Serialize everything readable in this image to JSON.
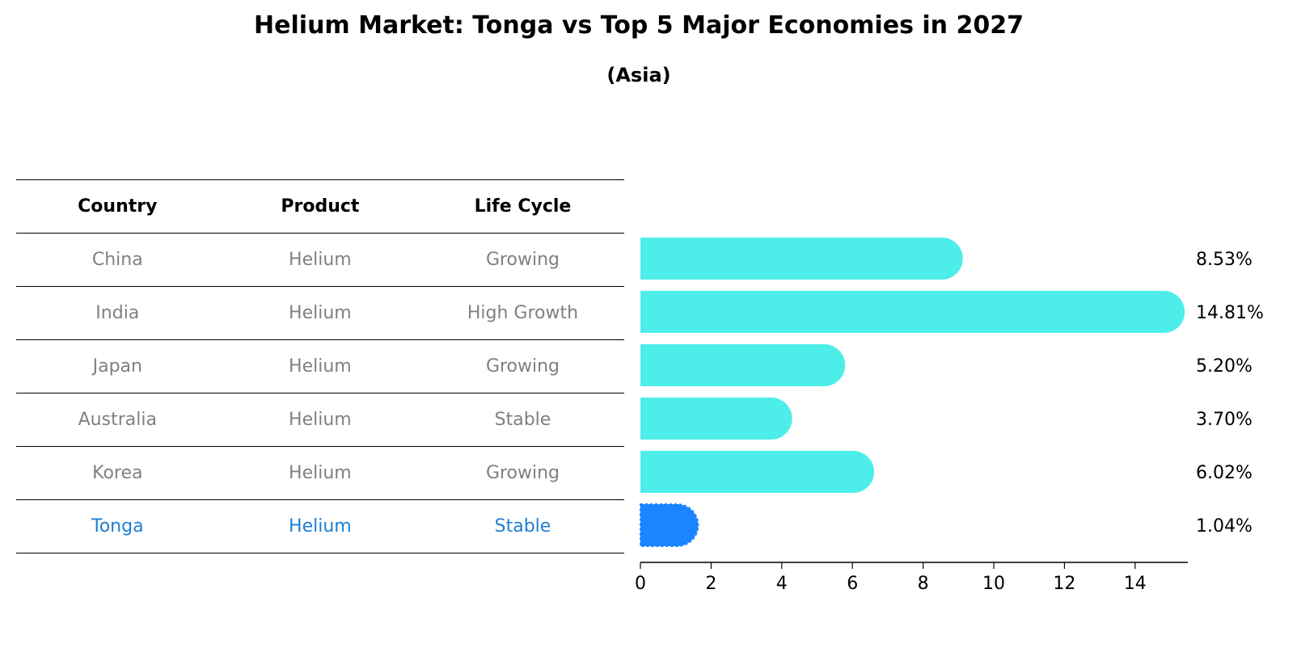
{
  "title": "Helium Market: Tonga vs Top 5 Major Economies in 2027",
  "subtitle": "(Asia)",
  "table": {
    "headers": [
      "Country",
      "Product",
      "Life Cycle"
    ],
    "rows": [
      {
        "country": "China",
        "product": "Helium",
        "life_cycle": "Growing"
      },
      {
        "country": "India",
        "product": "Helium",
        "life_cycle": "High Growth"
      },
      {
        "country": "Japan",
        "product": "Helium",
        "life_cycle": "Growing"
      },
      {
        "country": "Australia",
        "product": "Helium",
        "life_cycle": "Stable"
      },
      {
        "country": "Korea",
        "product": "Helium",
        "life_cycle": "Growing"
      },
      {
        "country": "Tonga",
        "product": "Helium",
        "life_cycle": "Stable"
      }
    ]
  },
  "colors": {
    "bar": "#4deeea",
    "highlight_bar": "#1a85ff",
    "highlight_text": "#1e7fd4"
  },
  "chart_data": {
    "type": "bar",
    "orientation": "horizontal",
    "categories": [
      "China",
      "India",
      "Japan",
      "Australia",
      "Korea",
      "Tonga"
    ],
    "values": [
      8.53,
      14.81,
      5.2,
      3.7,
      6.02,
      1.04
    ],
    "value_labels": [
      "8.53%",
      "14.81%",
      "5.20%",
      "3.70%",
      "6.02%",
      "1.04%"
    ],
    "highlight": "Tonga",
    "xlim": [
      0,
      15.5
    ],
    "xticks": [
      0,
      2,
      4,
      6,
      8,
      10,
      12,
      14
    ],
    "xlabel": "",
    "ylabel": ""
  }
}
